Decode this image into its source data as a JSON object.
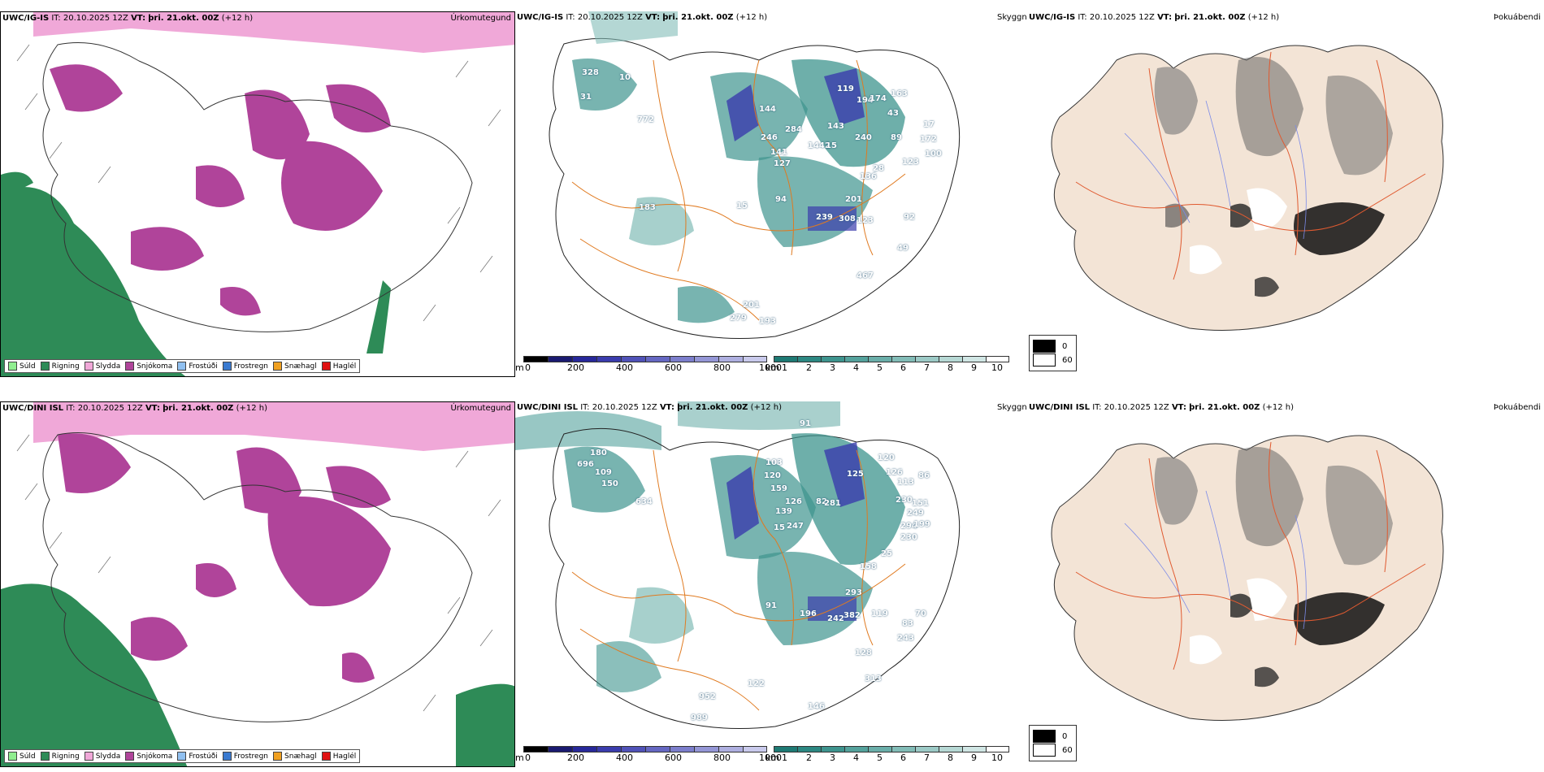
{
  "rows": [
    {
      "model": "UWC/IG-IS",
      "it_label": "IT:",
      "it_value": "20.10.2025 12Z",
      "vt_label": "VT:",
      "vt_value": "þri. 21.okt. 00Z",
      "lead": "(+12 h)",
      "labels": [
        "328",
        "10",
        "31",
        "772",
        "144",
        "246",
        "141",
        "127",
        "284",
        "143",
        "1442",
        "15",
        "119",
        "194",
        "174",
        "163",
        "43",
        "89",
        "240",
        "17",
        "172",
        "123",
        "100",
        "28",
        "136",
        "15",
        "94",
        "201",
        "239",
        "308",
        "123",
        "92",
        "49",
        "467",
        "201",
        "279",
        "193",
        "183"
      ]
    },
    {
      "model": "UWC/DINI ISL",
      "it_label": "IT:",
      "it_value": "20.10.2025 12Z",
      "vt_label": "VT:",
      "vt_value": "þri. 21.okt. 00Z",
      "lead": "(+12 h)",
      "labels": [
        "91",
        "180",
        "696",
        "109",
        "150",
        "634",
        "103",
        "120",
        "159",
        "126",
        "139",
        "15",
        "247",
        "82",
        "281",
        "125",
        "120",
        "126",
        "113",
        "86",
        "230",
        "151",
        "249",
        "294",
        "199",
        "230",
        "25",
        "158",
        "91",
        "293",
        "196",
        "242",
        "382",
        "119",
        "70",
        "83",
        "128",
        "243",
        "313",
        "146",
        "952",
        "989",
        "122"
      ]
    }
  ],
  "panel_titles": {
    "precip": "Úrkomutegund",
    "visibility": "Skyggni",
    "fog": "Þokuábendi"
  },
  "precip_legend": [
    {
      "label": "Súld",
      "color": "#90ee90"
    },
    {
      "label": "Rigning",
      "color": "#2e8b57"
    },
    {
      "label": "Slydda",
      "color": "#f0a8d8"
    },
    {
      "label": "Snjókoma",
      "color": "#b0449a"
    },
    {
      "label": "Frostúði",
      "color": "#90c0f0"
    },
    {
      "label": "Frostregn",
      "color": "#3a7ad0"
    },
    {
      "label": "Snæhagl",
      "color": "#f0a020"
    },
    {
      "label": "Haglél",
      "color": "#e01010"
    }
  ],
  "elevation_bar": {
    "unit": "m",
    "ticks": [
      "0",
      "200",
      "400",
      "600",
      "800",
      "1000"
    ],
    "colors": [
      "#000000",
      "#1a1a70",
      "#27289a",
      "#3a3cad",
      "#5052b8",
      "#6567c2",
      "#7c7ecc",
      "#9496d6",
      "#aeafe0",
      "#c9caec"
    ]
  },
  "visibility_bar": {
    "unit": "km",
    "ticks": [
      "1",
      "2",
      "3",
      "4",
      "5",
      "6",
      "7",
      "8",
      "9",
      "10"
    ],
    "colors": [
      "#1e7a74",
      "#2c8882",
      "#3e948e",
      "#54a29c",
      "#6aaea9",
      "#82bcb7",
      "#9ccac6",
      "#b6d8d4",
      "#d0e6e4",
      "#ffffff"
    ]
  },
  "fog_legend": [
    {
      "label": "0",
      "color": "#000000"
    },
    {
      "label": "60",
      "color": "#ffffff"
    }
  ]
}
